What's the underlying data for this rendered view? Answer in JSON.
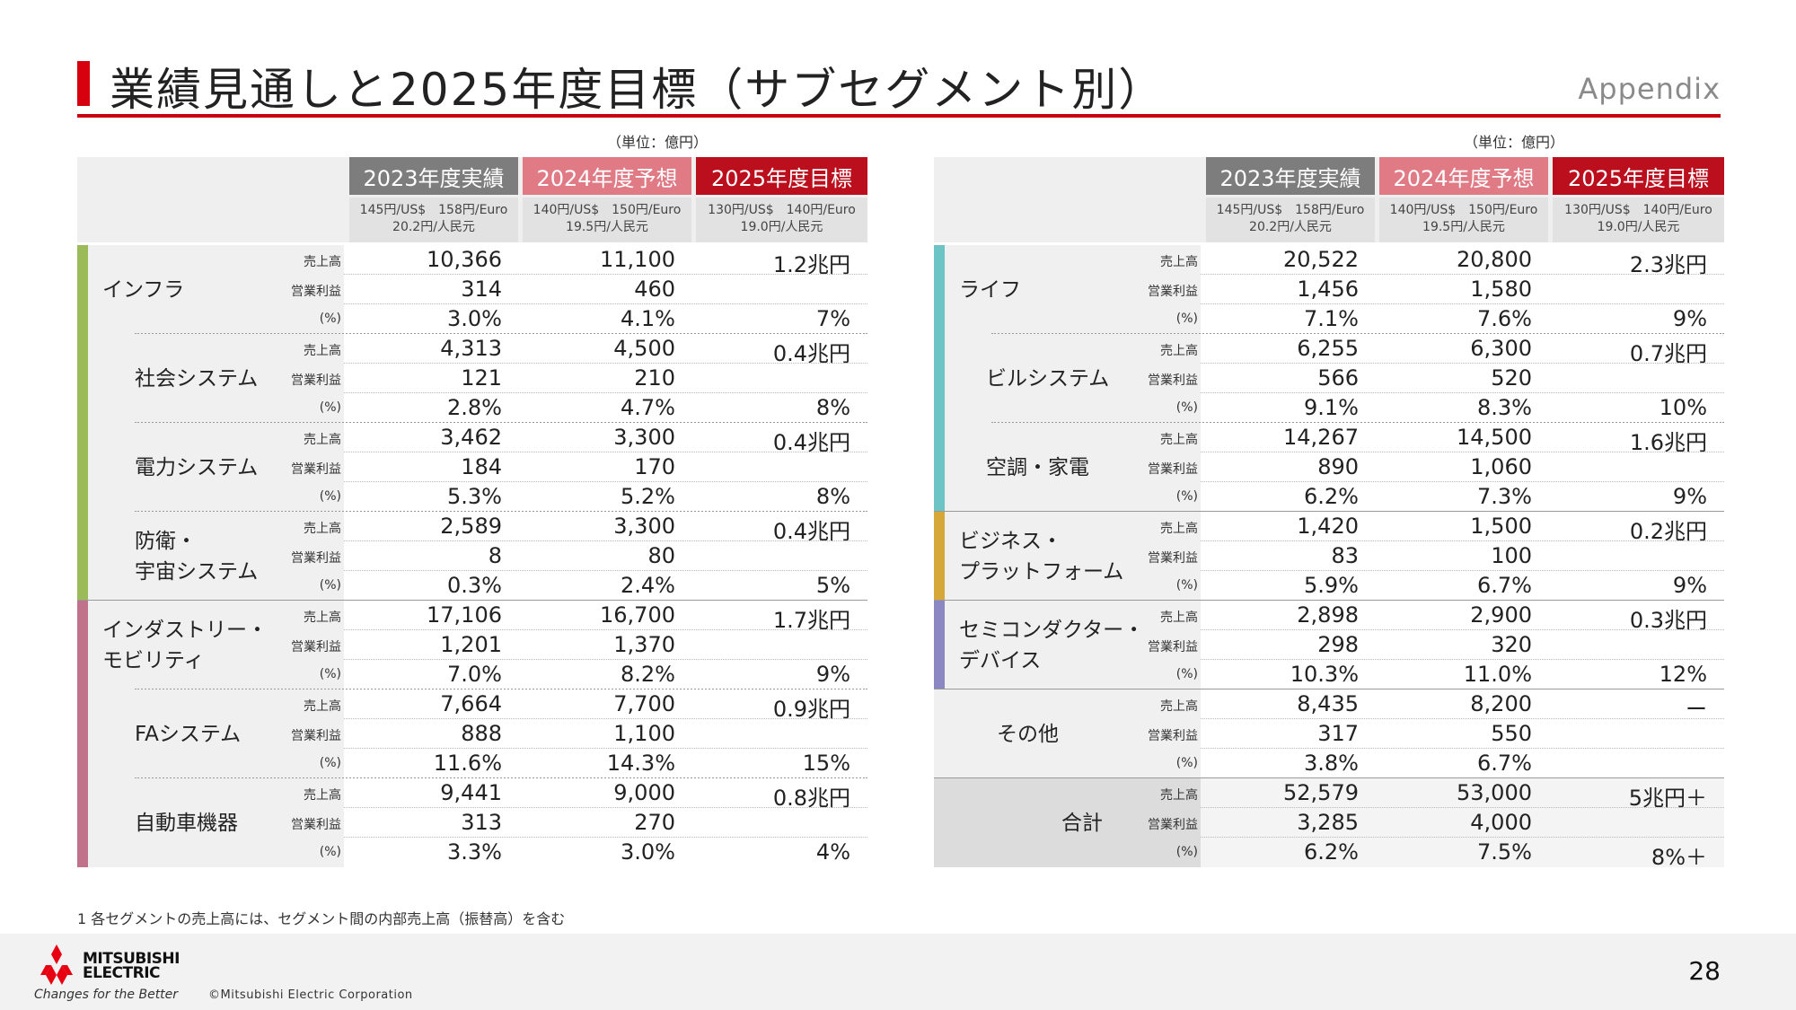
{
  "header": {
    "title": "業績見通しと2025年度目標（サブセグメント別）",
    "appendix": "Appendix"
  },
  "unit": "（単位：億円）",
  "columns": [
    {
      "label": "2023年度実績",
      "sub1": "145円/US$　158円/Euro",
      "sub2": "20.2円/人民元"
    },
    {
      "label": "2024年度予想",
      "sub1": "140円/US$　150円/Euro",
      "sub2": "19.5円/人民元"
    },
    {
      "label": "2025年度目標",
      "sub1": "130円/US$　140円/Euro",
      "sub2": "19.0円/人民元"
    }
  ],
  "row_labels": [
    "売上高",
    "営業利益",
    "(%)"
  ],
  "left": [
    {
      "name1": "インフラ",
      "name2": "",
      "vals": [
        [
          "10,366",
          "11,100",
          "1.2兆円"
        ],
        [
          "314",
          "460",
          ""
        ],
        [
          "3.0%",
          "4.1%",
          "7%"
        ]
      ]
    },
    {
      "name1": "社会システム",
      "name2": "",
      "vals": [
        [
          "4,313",
          "4,500",
          "0.4兆円"
        ],
        [
          "121",
          "210",
          ""
        ],
        [
          "2.8%",
          "4.7%",
          "8%"
        ]
      ]
    },
    {
      "name1": "電力システム",
      "name2": "",
      "vals": [
        [
          "3,462",
          "3,300",
          "0.4兆円"
        ],
        [
          "184",
          "170",
          ""
        ],
        [
          "5.3%",
          "5.2%",
          "8%"
        ]
      ]
    },
    {
      "name1": "防衛・",
      "name2": "宇宙システム",
      "vals": [
        [
          "2,589",
          "3,300",
          "0.4兆円"
        ],
        [
          "8",
          "80",
          ""
        ],
        [
          "0.3%",
          "2.4%",
          "5%"
        ]
      ]
    },
    {
      "name1": "インダストリー・",
      "name2": "モビリティ",
      "vals": [
        [
          "17,106",
          "16,700",
          "1.7兆円"
        ],
        [
          "1,201",
          "1,370",
          ""
        ],
        [
          "7.0%",
          "8.2%",
          "9%"
        ]
      ]
    },
    {
      "name1": "FAシステム",
      "name2": "",
      "vals": [
        [
          "7,664",
          "7,700",
          "0.9兆円"
        ],
        [
          "888",
          "1,100",
          ""
        ],
        [
          "11.6%",
          "14.3%",
          "15%"
        ]
      ]
    },
    {
      "name1": "自動車機器",
      "name2": "",
      "vals": [
        [
          "9,441",
          "9,000",
          "0.8兆円"
        ],
        [
          "313",
          "270",
          ""
        ],
        [
          "3.3%",
          "3.0%",
          "4%"
        ]
      ]
    }
  ],
  "right": [
    {
      "name1": "ライフ",
      "name2": "",
      "vals": [
        [
          "20,522",
          "20,800",
          "2.3兆円"
        ],
        [
          "1,456",
          "1,580",
          ""
        ],
        [
          "7.1%",
          "7.6%",
          "9%"
        ]
      ]
    },
    {
      "name1": "ビルシステム",
      "name2": "",
      "vals": [
        [
          "6,255",
          "6,300",
          "0.7兆円"
        ],
        [
          "566",
          "520",
          ""
        ],
        [
          "9.1%",
          "8.3%",
          "10%"
        ]
      ]
    },
    {
      "name1": "空調・家電",
      "name2": "",
      "vals": [
        [
          "14,267",
          "14,500",
          "1.6兆円"
        ],
        [
          "890",
          "1,060",
          ""
        ],
        [
          "6.2%",
          "7.3%",
          "9%"
        ]
      ]
    },
    {
      "name1": "ビジネス・",
      "name2": "プラットフォーム",
      "vals": [
        [
          "1,420",
          "1,500",
          "0.2兆円"
        ],
        [
          "83",
          "100",
          ""
        ],
        [
          "5.9%",
          "6.7%",
          "9%"
        ]
      ]
    },
    {
      "name1": "セミコンダクター・",
      "name2": "デバイス",
      "vals": [
        [
          "2,898",
          "2,900",
          "0.3兆円"
        ],
        [
          "298",
          "320",
          ""
        ],
        [
          "10.3%",
          "11.0%",
          "12%"
        ]
      ]
    },
    {
      "name1": "その他",
      "name2": "",
      "vals": [
        [
          "8,435",
          "8,200",
          "ー"
        ],
        [
          "317",
          "550",
          ""
        ],
        [
          "3.8%",
          "6.7%",
          ""
        ]
      ]
    },
    {
      "name1": "合計",
      "name2": "",
      "vals": [
        [
          "52,579",
          "53,000",
          "5兆円＋"
        ],
        [
          "3,285",
          "4,000",
          ""
        ],
        [
          "6.2%",
          "7.5%",
          "8%＋"
        ]
      ]
    }
  ],
  "colors": {
    "infra": "#9bbb59",
    "industry": "#c0728a",
    "life": "#6cc5c4",
    "business": "#d6a83a",
    "semi": "#8b87c2"
  },
  "footnote": "1 各セグメントの売上高には、セグメント間の内部売上高（振替高）を含む",
  "footer": {
    "brand1": "MITSUBISHI",
    "brand2": "ELECTRIC",
    "tagline": "Changes for the Better",
    "copyright": "©Mitsubishi Electric Corporation",
    "page": "28"
  }
}
